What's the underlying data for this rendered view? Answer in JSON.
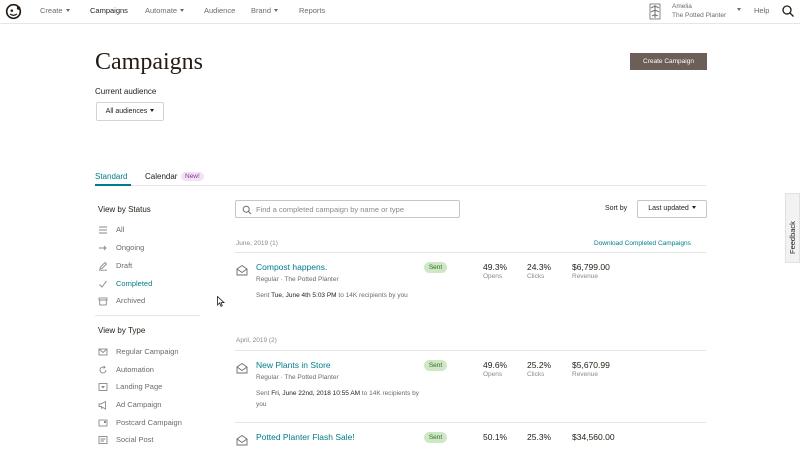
{
  "nav": {
    "items": [
      {
        "label": "Create",
        "dropdown": true
      },
      {
        "label": "Campaigns",
        "dropdown": false,
        "active": true
      },
      {
        "label": "Automate",
        "dropdown": true
      },
      {
        "label": "Audience",
        "dropdown": false
      },
      {
        "label": "Brand",
        "dropdown": true
      },
      {
        "label": "Reports",
        "dropdown": false
      }
    ],
    "account": {
      "name": "Amelia",
      "org": "The Potted Planter"
    },
    "help_label": "Help",
    "logo_icon": "freddie-logo-icon",
    "search_icon": "search-icon"
  },
  "header": {
    "title": "Campaigns",
    "create_label": "Create Campaign",
    "audience_label": "Current audience",
    "audience_value": "All audiences"
  },
  "tabs": {
    "standard": "Standard",
    "calendar": "Calendar",
    "new_badge": "New!"
  },
  "sidebar": {
    "status_heading": "View by Status",
    "status_items": [
      {
        "label": "All",
        "icon": "list-icon"
      },
      {
        "label": "Ongoing",
        "icon": "arrow-right-icon"
      },
      {
        "label": "Draft",
        "icon": "pencil-icon"
      },
      {
        "label": "Completed",
        "icon": "checkmark-icon",
        "active": true
      },
      {
        "label": "Archived",
        "icon": "archive-box-icon"
      }
    ],
    "type_heading": "View by Type",
    "type_items": [
      {
        "label": "Regular Campaign",
        "icon": "envelope-icon"
      },
      {
        "label": "Automation",
        "icon": "refresh-icon"
      },
      {
        "label": "Landing Page",
        "icon": "landing-page-icon"
      },
      {
        "label": "Ad Campaign",
        "icon": "megaphone-icon"
      },
      {
        "label": "Postcard Campaign",
        "icon": "postcard-icon"
      },
      {
        "label": "Social Post",
        "icon": "social-post-icon"
      }
    ]
  },
  "search": {
    "placeholder": "Find a completed campaign by name or type"
  },
  "sort": {
    "label": "Sort by",
    "value": "Last updated"
  },
  "download_label": "Download Completed Campaigns",
  "groups": [
    {
      "label": "June, 2019 (1)",
      "campaigns": [
        {
          "name": "Compost happens.",
          "subtitle": "Regular · The Potted Planter",
          "sent_prefix": "Sent",
          "sent_date": "Tue, June 4th 5:03 PM",
          "sent_suffix": "to 14K recipients by you",
          "status": "Sent",
          "opens": "49.3%",
          "opens_label": "Opens",
          "clicks": "24.3%",
          "clicks_label": "Clicks",
          "revenue": "$6,799.00",
          "revenue_label": "Revenue"
        }
      ]
    },
    {
      "label": "April, 2019 (2)",
      "campaigns": [
        {
          "name": "New Plants in Store",
          "subtitle": "Regular · The Potted Planter",
          "sent_prefix": "Sent",
          "sent_date": "Fri, June 22nd, 2018 10:55 AM",
          "sent_suffix": "to 14K recipients by you",
          "status": "Sent",
          "opens": "49.6%",
          "opens_label": "Opens",
          "clicks": "25.2%",
          "clicks_label": "Clicks",
          "revenue": "$5,670.99",
          "revenue_label": "Revenue"
        },
        {
          "name": "Potted Planter Flash Sale!",
          "status": "Sent",
          "opens": "50.1%",
          "clicks": "25.3%",
          "revenue": "$34,560.00"
        }
      ]
    }
  ],
  "feedback_label": "Feedback",
  "colors": {
    "accent": "#007c89",
    "button": "#6b5f57",
    "sent_badge_bg": "#cfe7c4",
    "new_badge_bg": "#f4e1f7"
  }
}
